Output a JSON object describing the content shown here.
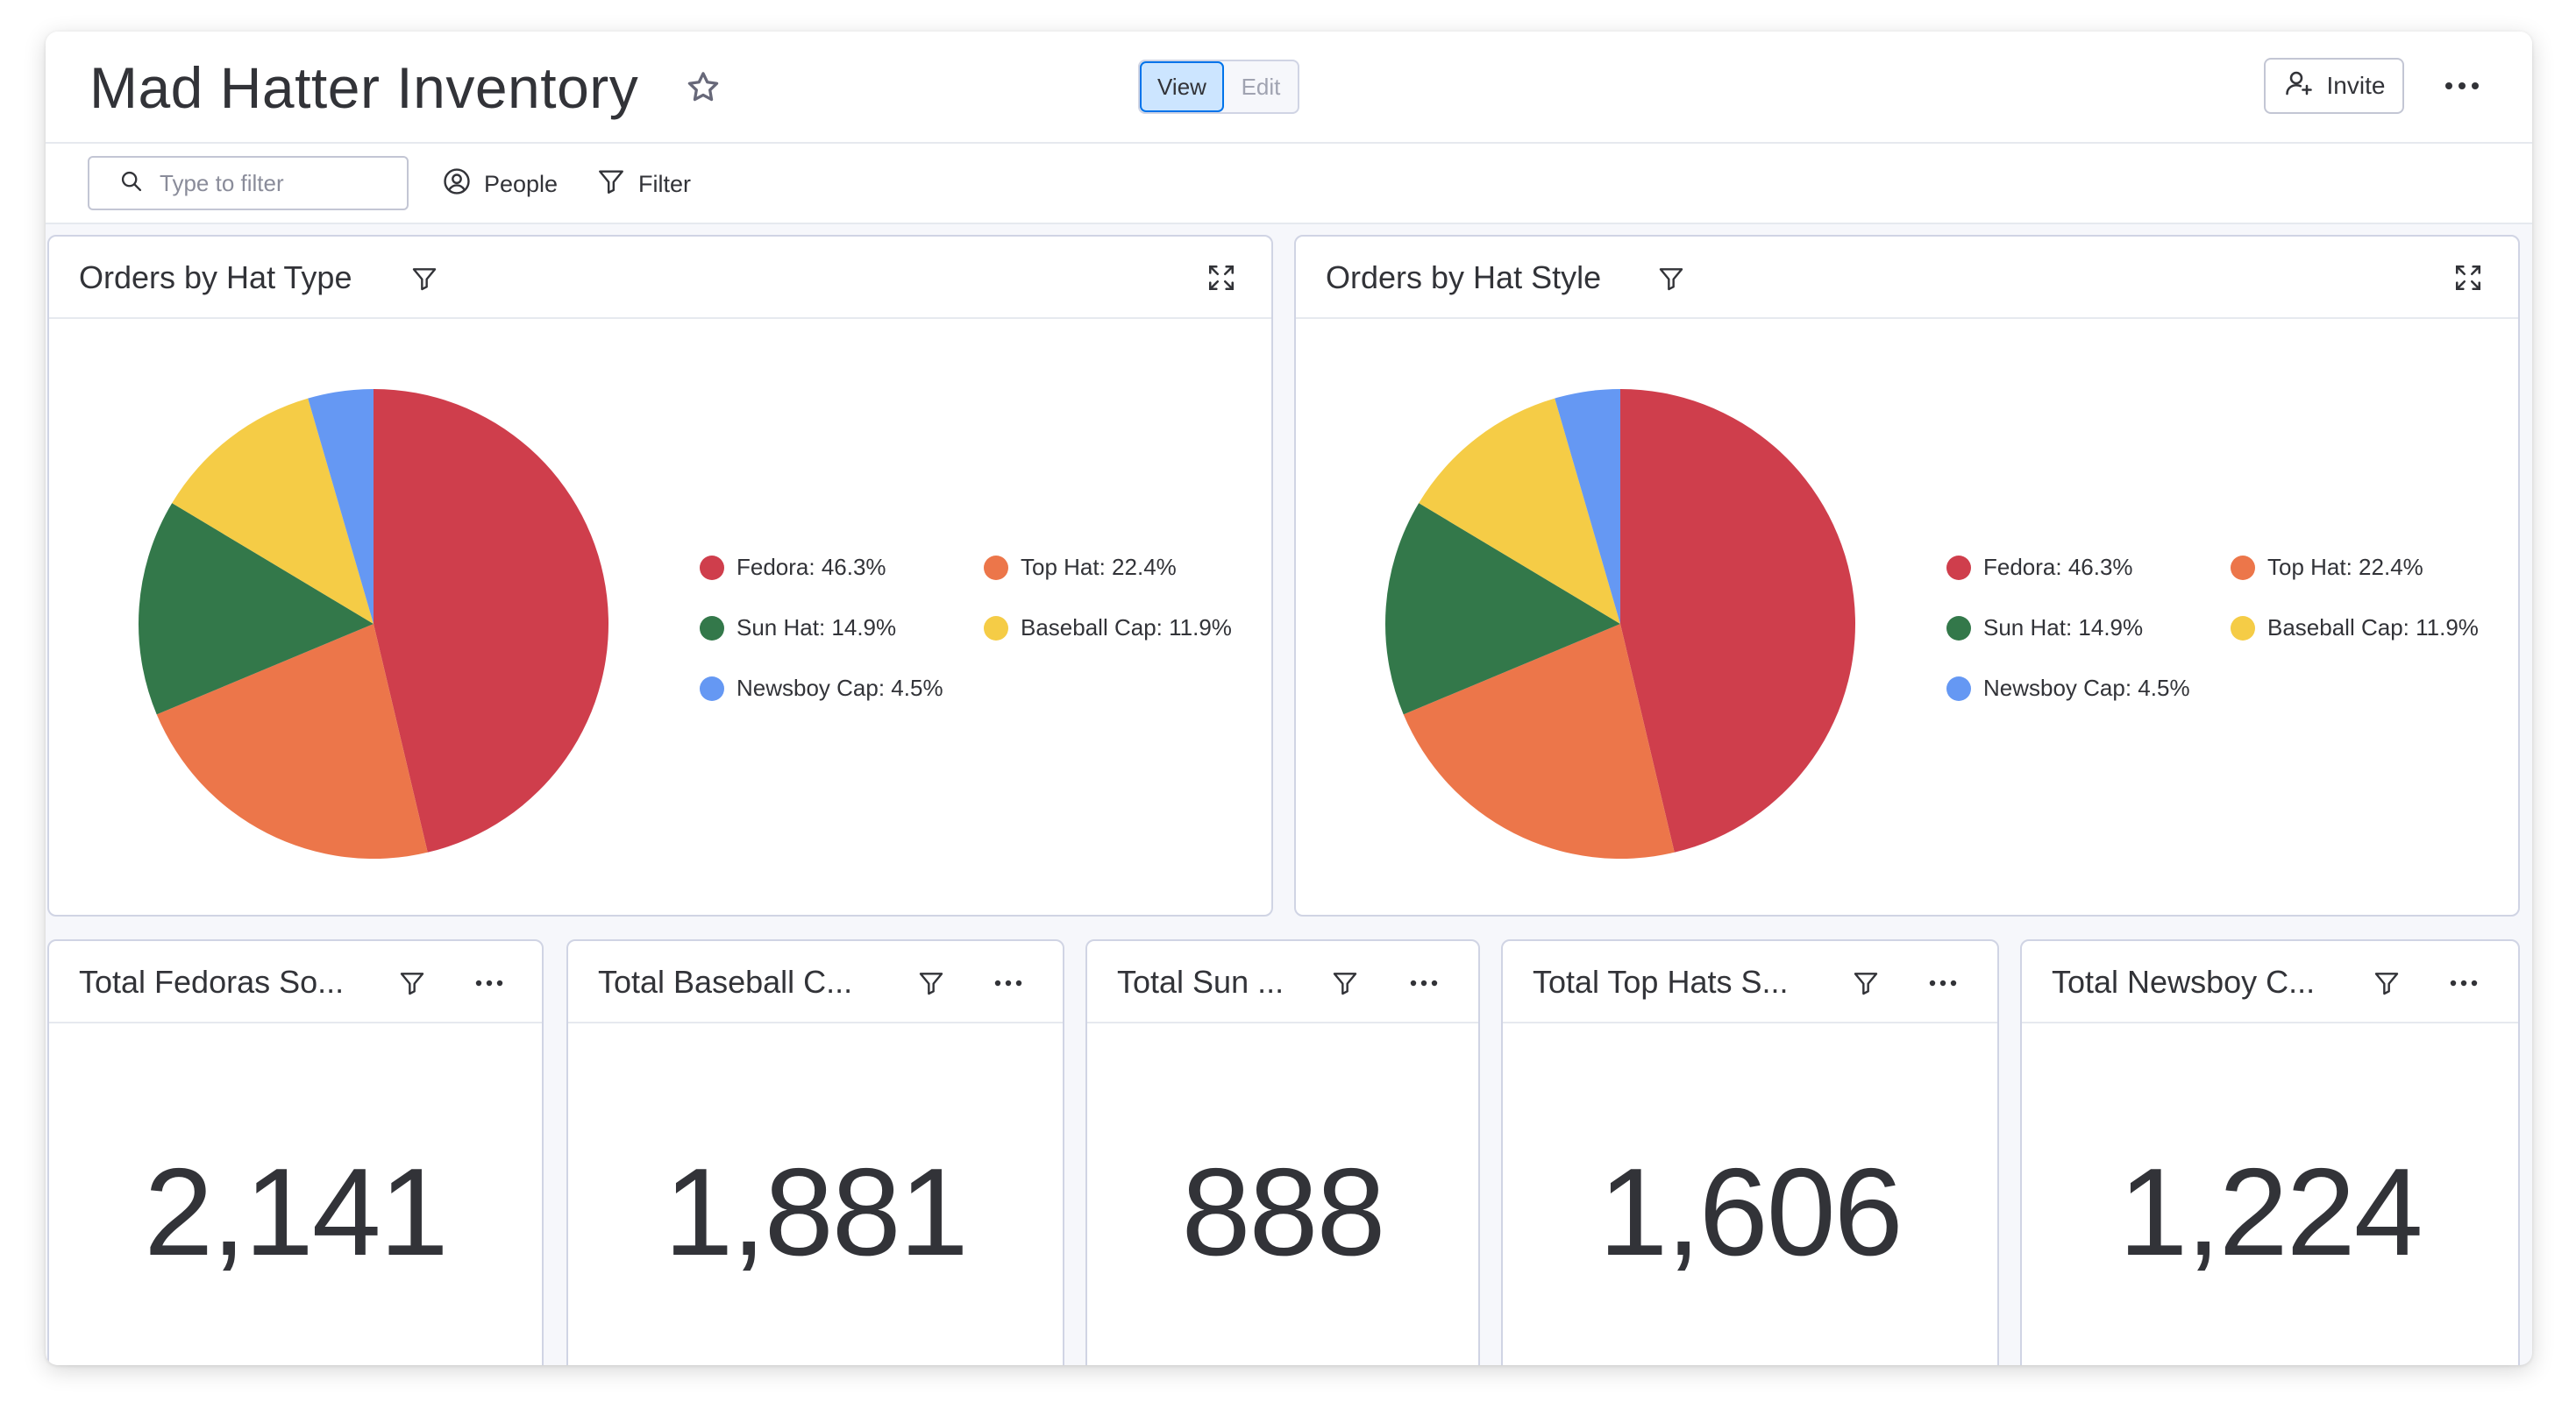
{
  "header": {
    "title": "Mad Hatter Inventory",
    "view_label": "View",
    "edit_label": "Edit",
    "invite_label": "Invite"
  },
  "filterbar": {
    "search_placeholder": "Type to filter",
    "people_label": "People",
    "filter_label": "Filter"
  },
  "colors": {
    "Fedora": "#cf3e4c",
    "Top Hat": "#ec764a",
    "Sun Hat": "#33784a",
    "Baseball Cap": "#f5cc46",
    "Newsboy Cap": "#6598f3"
  },
  "pie_widgets": [
    {
      "title": "Orders by Hat Type"
    },
    {
      "title": "Orders by Hat Style"
    }
  ],
  "chart_data": [
    {
      "type": "pie",
      "title": "Orders by Hat Type",
      "categories": [
        "Fedora",
        "Top Hat",
        "Sun Hat",
        "Baseball Cap",
        "Newsboy Cap"
      ],
      "values": [
        46.3,
        22.4,
        14.9,
        11.9,
        4.5
      ],
      "legend_labels": [
        "Fedora: 46.3%",
        "Top Hat: 22.4%",
        "Sun Hat: 14.9%",
        "Baseball Cap: 11.9%",
        "Newsboy Cap: 4.5%"
      ],
      "legend_position": "right"
    },
    {
      "type": "pie",
      "title": "Orders by Hat Style",
      "categories": [
        "Fedora",
        "Top Hat",
        "Sun Hat",
        "Baseball Cap",
        "Newsboy Cap"
      ],
      "values": [
        46.3,
        22.4,
        14.9,
        11.9,
        4.5
      ],
      "legend_labels": [
        "Fedora: 46.3%",
        "Top Hat: 22.4%",
        "Sun Hat: 14.9%",
        "Baseball Cap: 11.9%",
        "Newsboy Cap: 4.5%"
      ],
      "legend_position": "right"
    }
  ],
  "number_widgets": [
    {
      "title": "Total Fedoras So...",
      "value": "2,141"
    },
    {
      "title": "Total Baseball C...",
      "value": "1,881"
    },
    {
      "title": "Total Sun ...",
      "value": "888"
    },
    {
      "title": "Total Top Hats S...",
      "value": "1,606"
    },
    {
      "title": "Total Newsboy C...",
      "value": "1,224"
    }
  ]
}
